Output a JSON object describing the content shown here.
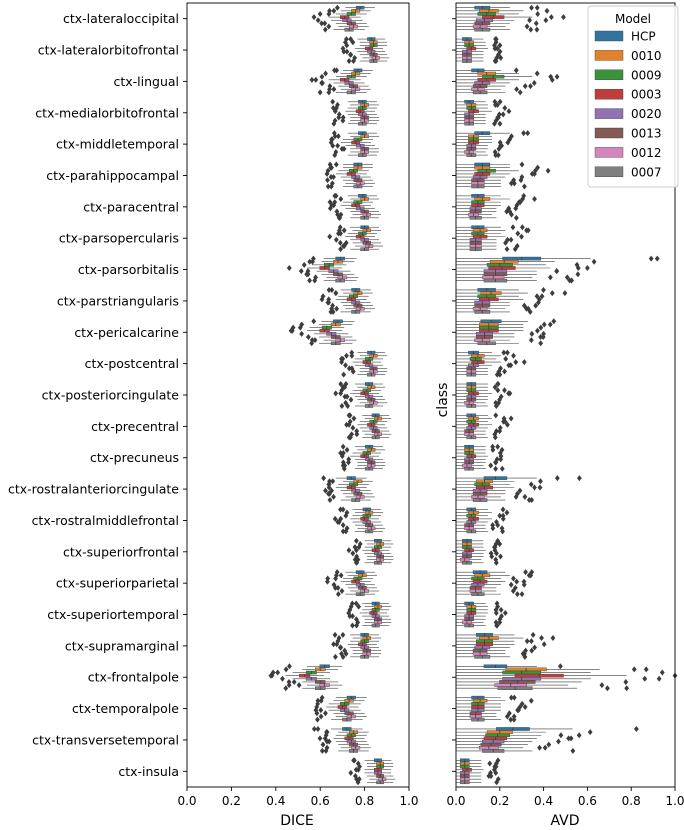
{
  "chart_data": [
    {
      "panel": "DICE",
      "type": "boxplot",
      "orientation": "horizontal",
      "xlabel": "DICE",
      "ylabel": "class",
      "xlim": [
        0.0,
        1.0
      ],
      "xticks": [
        "0.0",
        "0.2",
        "0.4",
        "0.6",
        "0.8",
        "1.0"
      ],
      "legend": "none",
      "medians": {
        "ctx-lateraloccipital": [
          0.78,
          0.76,
          0.74,
          0.71,
          0.72,
          0.74,
          0.75,
          0.73
        ],
        "ctx-lateralorbitofrontal": [
          0.83,
          0.84,
          0.84,
          0.82,
          0.83,
          0.84,
          0.85,
          0.84
        ],
        "ctx-lingual": [
          0.77,
          0.76,
          0.74,
          0.71,
          0.73,
          0.75,
          0.76,
          0.74
        ],
        "ctx-medialorbitofrontal": [
          0.79,
          0.8,
          0.79,
          0.78,
          0.79,
          0.8,
          0.8,
          0.79
        ],
        "ctx-middletemporal": [
          0.79,
          0.8,
          0.77,
          0.76,
          0.78,
          0.8,
          0.8,
          0.79
        ],
        "ctx-parahippocampal": [
          0.77,
          0.77,
          0.75,
          0.74,
          0.76,
          0.77,
          0.78,
          0.77
        ],
        "ctx-paracentral": [
          0.79,
          0.8,
          0.77,
          0.76,
          0.78,
          0.8,
          0.81,
          0.8
        ],
        "ctx-parsopercularis": [
          0.8,
          0.81,
          0.79,
          0.78,
          0.8,
          0.81,
          0.82,
          0.8
        ],
        "ctx-parsorbitalis": [
          0.69,
          0.68,
          0.64,
          0.62,
          0.66,
          0.68,
          0.7,
          0.69
        ],
        "ctx-parstriangularis": [
          0.76,
          0.77,
          0.75,
          0.74,
          0.76,
          0.77,
          0.78,
          0.76
        ],
        "ctx-pericalcarine": [
          0.68,
          0.67,
          0.63,
          0.62,
          0.65,
          0.67,
          0.69,
          0.67
        ],
        "ctx-postcentral": [
          0.83,
          0.84,
          0.82,
          0.81,
          0.82,
          0.84,
          0.84,
          0.83
        ],
        "ctx-posteriorcingulate": [
          0.82,
          0.83,
          0.81,
          0.8,
          0.82,
          0.83,
          0.84,
          0.82
        ],
        "ctx-precentral": [
          0.85,
          0.86,
          0.84,
          0.83,
          0.84,
          0.85,
          0.86,
          0.85
        ],
        "ctx-precuneus": [
          0.82,
          0.83,
          0.81,
          0.8,
          0.82,
          0.83,
          0.83,
          0.82
        ],
        "ctx-rostralanteriorcingulate": [
          0.74,
          0.77,
          0.75,
          0.74,
          0.76,
          0.77,
          0.78,
          0.76
        ],
        "ctx-rostralmiddlefrontal": [
          0.81,
          0.82,
          0.81,
          0.8,
          0.81,
          0.82,
          0.83,
          0.82
        ],
        "ctx-superiorfrontal": [
          0.86,
          0.87,
          0.86,
          0.85,
          0.86,
          0.87,
          0.87,
          0.86
        ],
        "ctx-superiorparietal": [
          0.78,
          0.79,
          0.77,
          0.76,
          0.78,
          0.79,
          0.8,
          0.78
        ],
        "ctx-superiortemporal": [
          0.85,
          0.86,
          0.85,
          0.84,
          0.85,
          0.86,
          0.86,
          0.85
        ],
        "ctx-supramarginal": [
          0.8,
          0.81,
          0.8,
          0.79,
          0.8,
          0.81,
          0.81,
          0.8
        ],
        "ctx-frontalpole": [
          0.62,
          0.6,
          0.56,
          0.53,
          0.56,
          0.6,
          0.62,
          0.6
        ],
        "ctx-temporalpole": [
          0.74,
          0.73,
          0.71,
          0.7,
          0.71,
          0.73,
          0.74,
          0.72
        ],
        "ctx-transversetemporal": [
          0.72,
          0.75,
          0.74,
          0.73,
          0.74,
          0.75,
          0.76,
          0.75
        ],
        "ctx-insula": [
          0.86,
          0.87,
          0.87,
          0.86,
          0.86,
          0.87,
          0.88,
          0.87
        ]
      }
    },
    {
      "panel": "AVD",
      "type": "boxplot",
      "orientation": "horizontal",
      "xlabel": "AVD",
      "ylabel": "",
      "xlim": [
        0.0,
        1.0
      ],
      "xticks": [
        "0.0",
        "0.2",
        "0.4",
        "0.6",
        "0.8",
        "1.0"
      ],
      "legend": "top-right",
      "medians": {
        "ctx-lateraloccipital": [
          0.12,
          0.15,
          0.14,
          0.17,
          0.13,
          0.12,
          0.11,
          0.12
        ],
        "ctx-lateralorbitofrontal": [
          0.05,
          0.06,
          0.06,
          0.07,
          0.05,
          0.05,
          0.05,
          0.05
        ],
        "ctx-lingual": [
          0.1,
          0.14,
          0.17,
          0.14,
          0.12,
          0.11,
          0.1,
          0.11
        ],
        "ctx-medialorbitofrontal": [
          0.06,
          0.07,
          0.07,
          0.08,
          0.06,
          0.06,
          0.06,
          0.06
        ],
        "ctx-middletemporal": [
          0.12,
          0.08,
          0.08,
          0.08,
          0.07,
          0.07,
          0.06,
          0.07
        ],
        "ctx-parahippocampal": [
          0.12,
          0.12,
          0.14,
          0.12,
          0.11,
          0.1,
          0.1,
          0.1
        ],
        "ctx-paracentral": [
          0.1,
          0.12,
          0.1,
          0.1,
          0.09,
          0.09,
          0.08,
          0.09
        ],
        "ctx-parsopercularis": [
          0.1,
          0.11,
          0.1,
          0.11,
          0.09,
          0.09,
          0.09,
          0.09
        ],
        "ctx-parsorbitalis": [
          0.3,
          0.22,
          0.2,
          0.21,
          0.18,
          0.18,
          0.17,
          0.18
        ],
        "ctx-parstriangularis": [
          0.14,
          0.16,
          0.14,
          0.15,
          0.12,
          0.12,
          0.11,
          0.12
        ],
        "ctx-pericalcarine": [
          0.16,
          0.15,
          0.15,
          0.15,
          0.13,
          0.13,
          0.12,
          0.14
        ],
        "ctx-postcentral": [
          0.08,
          0.1,
          0.09,
          0.1,
          0.08,
          0.07,
          0.07,
          0.07
        ],
        "ctx-posteriorcingulate": [
          0.07,
          0.07,
          0.07,
          0.08,
          0.07,
          0.07,
          0.06,
          0.07
        ],
        "ctx-precentral": [
          0.07,
          0.08,
          0.07,
          0.08,
          0.07,
          0.06,
          0.06,
          0.07
        ],
        "ctx-precuneus": [
          0.06,
          0.06,
          0.06,
          0.07,
          0.06,
          0.06,
          0.05,
          0.06
        ],
        "ctx-rostralanteriorcingulate": [
          0.18,
          0.13,
          0.12,
          0.13,
          0.11,
          0.11,
          0.1,
          0.11
        ],
        "ctx-rostralmiddlefrontal": [
          0.07,
          0.08,
          0.07,
          0.08,
          0.07,
          0.06,
          0.06,
          0.07
        ],
        "ctx-superiorfrontal": [
          0.05,
          0.05,
          0.05,
          0.06,
          0.05,
          0.05,
          0.04,
          0.05
        ],
        "ctx-superiorparietal": [
          0.11,
          0.12,
          0.1,
          0.11,
          0.1,
          0.09,
          0.09,
          0.1
        ],
        "ctx-superiortemporal": [
          0.06,
          0.07,
          0.07,
          0.07,
          0.06,
          0.06,
          0.05,
          0.06
        ],
        "ctx-supramarginal": [
          0.13,
          0.15,
          0.13,
          0.13,
          0.12,
          0.11,
          0.11,
          0.12
        ],
        "ctx-frontalpole": [
          0.18,
          0.32,
          0.3,
          0.38,
          0.3,
          0.28,
          0.25,
          0.27
        ],
        "ctx-temporalpole": [
          0.1,
          0.11,
          0.1,
          0.1,
          0.1,
          0.09,
          0.09,
          0.1
        ],
        "ctx-transversetemporal": [
          0.26,
          0.2,
          0.19,
          0.18,
          0.17,
          0.16,
          0.15,
          0.17
        ],
        "ctx-insula": [
          0.04,
          0.04,
          0.04,
          0.05,
          0.04,
          0.04,
          0.04,
          0.04
        ]
      }
    }
  ],
  "classes": [
    "ctx-lateraloccipital",
    "ctx-lateralorbitofrontal",
    "ctx-lingual",
    "ctx-medialorbitofrontal",
    "ctx-middletemporal",
    "ctx-parahippocampal",
    "ctx-paracentral",
    "ctx-parsopercularis",
    "ctx-parsorbitalis",
    "ctx-parstriangularis",
    "ctx-pericalcarine",
    "ctx-postcentral",
    "ctx-posteriorcingulate",
    "ctx-precentral",
    "ctx-precuneus",
    "ctx-rostralanteriorcingulate",
    "ctx-rostralmiddlefrontal",
    "ctx-superiorfrontal",
    "ctx-superiorparietal",
    "ctx-superiortemporal",
    "ctx-supramarginal",
    "ctx-frontalpole",
    "ctx-temporalpole",
    "ctx-transversetemporal",
    "ctx-insula"
  ],
  "models": [
    "HCP",
    "0010",
    "0009",
    "0003",
    "0020",
    "0013",
    "0012",
    "0007"
  ],
  "model_colors": [
    "#3274a1",
    "#e1812c",
    "#3a923a",
    "#c03d3e",
    "#9372b2",
    "#845b53",
    "#d684bd",
    "#7f7f7f"
  ],
  "legend": {
    "title": "Model"
  },
  "y_axis_label": "class"
}
